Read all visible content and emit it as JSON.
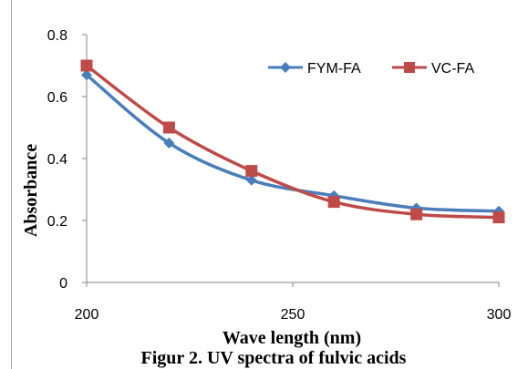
{
  "chart_data": {
    "type": "line",
    "title": "",
    "xlabel": "Wave length (nm)",
    "ylabel": "Absorbance",
    "caption": "Figur 2. UV spectra of fulvic acids",
    "x": [
      200,
      220,
      240,
      260,
      280,
      300
    ],
    "xlim": [
      200,
      300
    ],
    "ylim": [
      0,
      0.8
    ],
    "xticks": [
      "200",
      "250",
      "300"
    ],
    "xtick_values": [
      200,
      250,
      300
    ],
    "yticks": [
      "0",
      "0.2",
      "0.4",
      "0.6",
      "0.8"
    ],
    "ytick_values": [
      0,
      0.2,
      0.4,
      0.6,
      0.8
    ],
    "grid": false,
    "legend_position": "top-right",
    "series": [
      {
        "name": "FYM-FA",
        "color": "#4a7ebb",
        "marker": "diamond",
        "values": [
          0.67,
          0.45,
          0.33,
          0.28,
          0.24,
          0.23
        ]
      },
      {
        "name": "VC-FA",
        "color": "#be4b48",
        "marker": "square",
        "values": [
          0.7,
          0.5,
          0.36,
          0.26,
          0.22,
          0.21
        ]
      }
    ]
  }
}
